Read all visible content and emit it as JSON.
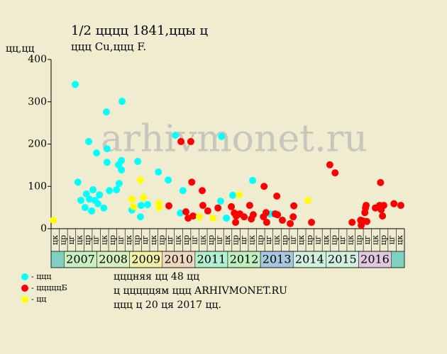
{
  "chart_data": {
    "type": "scatter",
    "title": "1/2 цццц 1841,ццы ц",
    "subtitle": "ццц Cu,ццц F.",
    "y_label": "цц,цц",
    "watermark": "arhivmonet.ru",
    "xlim": [
      2006.6,
      2017.4
    ],
    "ylim": [
      0,
      400
    ],
    "yticks": [
      0,
      100,
      200,
      300,
      400
    ],
    "year_bands": [
      2007,
      2008,
      2009,
      2010,
      2011,
      2012,
      2013,
      2014,
      2015,
      2016
    ],
    "year_colors": [
      "#c8f0c0",
      "#d8f0c0",
      "#f0f0a8",
      "#f0d8c0",
      "#b0f0d0",
      "#c0f0c0",
      "#a8c8e0",
      "#d0f0e0",
      "#d0f0e0",
      "#e0c8e0"
    ],
    "quarter_labels": [
      "цк",
      "цр",
      "цг",
      "цк",
      "цр",
      "цг",
      "цк",
      "цр",
      "цг",
      "цк",
      "цр",
      "цг",
      "цк",
      "цр",
      "цг",
      "цк",
      "цр",
      "цг",
      "цк",
      "цр",
      "цг",
      "цк",
      "цр",
      "цг",
      "цк",
      "цр",
      "цг",
      "цк",
      "цр",
      "цг",
      "цк",
      "цр",
      "цг",
      "цк",
      "цр",
      "цг",
      "цк",
      "цр",
      "цг",
      "цк",
      "цр",
      "цг",
      "цк"
    ],
    "series": [
      {
        "name": "- ццц",
        "color": "#00ffff",
        "x": [
          2007.34,
          2007.42,
          2007.51,
          2007.64,
          2007.68,
          2007.77,
          2007.75,
          2007.84,
          2007.88,
          2007.94,
          2007.99,
          2008.03,
          2008.08,
          2008.21,
          2008.29,
          2008.31,
          2008.31,
          2008.38,
          2008.6,
          2008.66,
          2008.68,
          2008.75,
          2008.75,
          2008.77,
          2009.07,
          2009.25,
          2009.33,
          2009.35,
          2009.55,
          2009.88,
          2010.18,
          2010.4,
          2010.55,
          2010.63,
          2011.81,
          2011.78,
          2011.96,
          2012.15,
          2012.76,
          2013.28,
          2013.41
        ],
        "values": [
          341,
          110,
          67,
          50,
          82,
          70,
          206,
          42,
          92,
          67,
          179,
          59,
          80,
          49,
          276,
          189,
          157,
          90,
          92,
          151,
          107,
          139,
          161,
          301,
          44,
          159,
          28,
          55,
          57,
          134,
          115,
          221,
          37,
          90,
          218,
          65,
          25,
          79,
          114,
          35,
          35
        ]
      },
      {
        "name": "- цццццБ",
        "color": "#ff0000",
        "x": [
          2010.57,
          2010.2,
          2010.72,
          2010.79,
          2010.87,
          2010.9,
          2010.94,
          2011.22,
          2011.24,
          2011.39,
          2011.7,
          2012.11,
          2012.2,
          2012.24,
          2012.26,
          2012.37,
          2012.5,
          2012.67,
          2012.72,
          2012.78,
          2013.11,
          2013.09,
          2013.17,
          2013.19,
          2013.45,
          2013.5,
          2013.52,
          2013.67,
          2013.91,
          2014.02,
          2014.0,
          2014.56,
          2015.12,
          2015.28,
          2015.8,
          2016.06,
          2016.08,
          2016.14,
          2016.19,
          2016.21,
          2016.23,
          2016.25,
          2016.51,
          2016.64,
          2016.67,
          2016.69,
          2016.73,
          2016.77,
          2017.08,
          2017.29
        ],
        "values": [
          206,
          54,
          40,
          25,
          206,
          110,
          30,
          90,
          55,
          42,
          49,
          52,
          37,
          15,
          30,
          35,
          28,
          55,
          23,
          33,
          100,
          28,
          38,
          15,
          35,
          77,
          33,
          20,
          12,
          54,
          28,
          15,
          151,
          132,
          15,
          20,
          8,
          18,
          38,
          49,
          55,
          17,
          49,
          55,
          109,
          45,
          30,
          55,
          59,
          55
        ]
      },
      {
        "name": "- цц",
        "color": "#ffff00",
        "x": [
          2006.67,
          2009.07,
          2009.12,
          2009.33,
          2009.42,
          2009.9,
          2009.9,
          2011.13,
          2011.55,
          2012.35,
          2014.45
        ],
        "values": [
          20,
          70,
          52,
          115,
          74,
          60,
          50,
          28,
          25,
          80,
          67
        ]
      }
    ],
    "notes": [
      "цццняя цц 48 цц",
      "ц цццццям ццц ARHIVMONET.RU",
      "ццц ц 20 ця 2017 цц."
    ]
  }
}
